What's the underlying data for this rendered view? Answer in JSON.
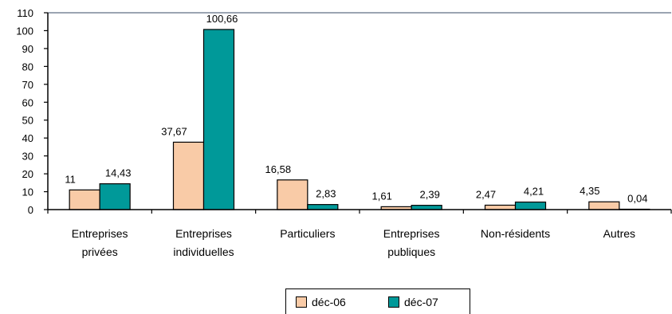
{
  "chart_data": {
    "type": "bar",
    "categories": [
      [
        "Entreprises",
        "privées"
      ],
      [
        "Entreprises",
        "individuelles"
      ],
      [
        "Particuliers"
      ],
      [
        "Entreprises",
        "publiques"
      ],
      [
        "Non-résidents"
      ],
      [
        "Autres"
      ]
    ],
    "series": [
      {
        "name": "déc-06",
        "color": "#F9CBA7",
        "values": [
          11,
          37.67,
          16.58,
          1.61,
          2.47,
          4.35
        ],
        "labels": [
          "11",
          "37,67",
          "16,58",
          "1,61",
          "2,47",
          "4,35"
        ]
      },
      {
        "name": "déc-07",
        "color": "#009999",
        "values": [
          14.43,
          100.66,
          2.83,
          2.39,
          4.21,
          0.04
        ],
        "labels": [
          "14,43",
          "100,66",
          "2,83",
          "2,39",
          "4,21",
          "0,04"
        ]
      }
    ],
    "ylim": [
      0,
      110
    ],
    "yticks": [
      0,
      10,
      20,
      30,
      40,
      50,
      60,
      70,
      80,
      90,
      100,
      110
    ],
    "legend": "bottom-center",
    "grid": false
  }
}
